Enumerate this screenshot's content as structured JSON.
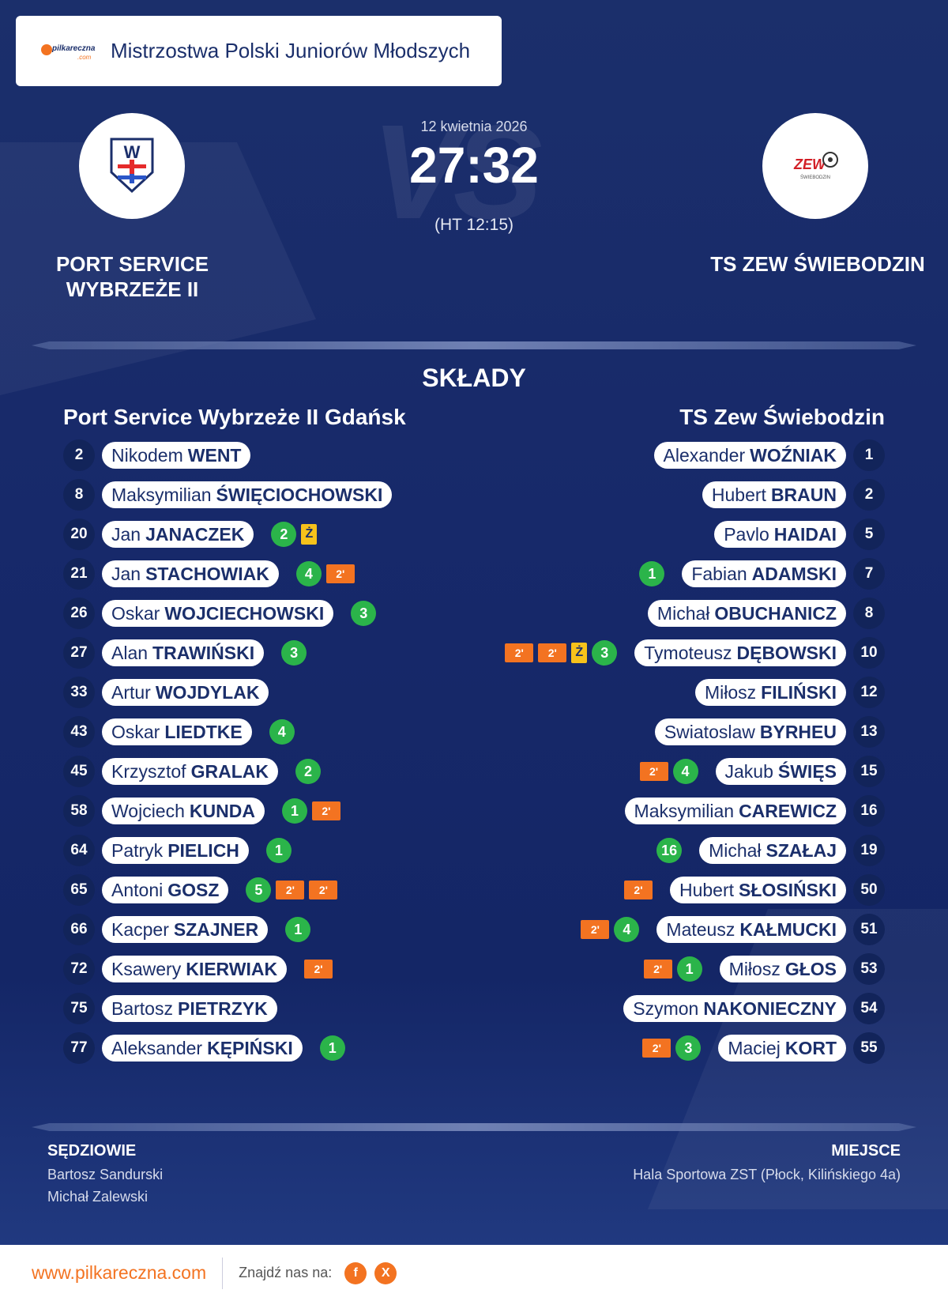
{
  "header": {
    "competition": "Mistrzostwa Polski Juniorów Młodszych",
    "brand": "pilkareczna",
    "brand_suffix": ".com"
  },
  "match": {
    "date": "12 kwietnia 2026",
    "score": "27:32",
    "halftime": "(HT 12:15)",
    "vs": "VS"
  },
  "home": {
    "name_line1": "PORT SERVICE",
    "name_line2": "WYBRZEŻE II",
    "logo_text": "W",
    "squad_title": "Port Service Wybrzeże II Gdańsk",
    "players": [
      {
        "num": "2",
        "first": "Nikodem",
        "last": "WENT",
        "goals": "",
        "events": []
      },
      {
        "num": "8",
        "first": "Maksymilian",
        "last": "ŚWIĘCIOCHOWSKI",
        "goals": "",
        "events": []
      },
      {
        "num": "20",
        "first": "Jan",
        "last": "JANACZEK",
        "goals": "2",
        "events": [
          "Ż"
        ]
      },
      {
        "num": "21",
        "first": "Jan",
        "last": "STACHOWIAK",
        "goals": "4",
        "events": [
          "2'"
        ]
      },
      {
        "num": "26",
        "first": "Oskar",
        "last": "WOJCIECHOWSKI",
        "goals": "3",
        "events": []
      },
      {
        "num": "27",
        "first": "Alan",
        "last": "TRAWIŃSKI",
        "goals": "3",
        "events": []
      },
      {
        "num": "33",
        "first": "Artur",
        "last": "WOJDYLAK",
        "goals": "",
        "events": []
      },
      {
        "num": "43",
        "first": "Oskar",
        "last": "LIEDTKE",
        "goals": "4",
        "events": []
      },
      {
        "num": "45",
        "first": "Krzysztof",
        "last": "GRALAK",
        "goals": "2",
        "events": []
      },
      {
        "num": "58",
        "first": "Wojciech",
        "last": "KUNDA",
        "goals": "1",
        "events": [
          "2'"
        ]
      },
      {
        "num": "64",
        "first": "Patryk",
        "last": "PIELICH",
        "goals": "1",
        "events": []
      },
      {
        "num": "65",
        "first": "Antoni",
        "last": "GOSZ",
        "goals": "5",
        "events": [
          "2'",
          "2'"
        ]
      },
      {
        "num": "66",
        "first": "Kacper",
        "last": "SZAJNER",
        "goals": "1",
        "events": []
      },
      {
        "num": "72",
        "first": "Ksawery",
        "last": "KIERWIAK",
        "goals": "",
        "events": [
          "2'"
        ]
      },
      {
        "num": "75",
        "first": "Bartosz",
        "last": "PIETRZYK",
        "goals": "",
        "events": []
      },
      {
        "num": "77",
        "first": "Aleksander",
        "last": "KĘPIŃSKI",
        "goals": "1",
        "events": []
      }
    ]
  },
  "away": {
    "name": "TS ZEW ŚWIEBODZIN",
    "logo_text": "ZEW",
    "logo_subtext": "ŚWIEBODZIN",
    "squad_title": "TS Zew Świebodzin",
    "players": [
      {
        "num": "1",
        "first": "Alexander",
        "last": "WOŹNIAK",
        "goals": "",
        "events": []
      },
      {
        "num": "2",
        "first": "Hubert",
        "last": "BRAUN",
        "goals": "",
        "events": []
      },
      {
        "num": "5",
        "first": "Pavlo",
        "last": "HAIDAI",
        "goals": "",
        "events": []
      },
      {
        "num": "7",
        "first": "Fabian",
        "last": "ADAMSKI",
        "goals": "1",
        "events": []
      },
      {
        "num": "8",
        "first": "Michał",
        "last": "OBUCHANICZ",
        "goals": "",
        "events": []
      },
      {
        "num": "10",
        "first": "Tymoteusz",
        "last": "DĘBOWSKI",
        "goals": "3",
        "events": [
          "Ż",
          "2'",
          "2'"
        ]
      },
      {
        "num": "12",
        "first": "Miłosz",
        "last": "FILIŃSKI",
        "goals": "",
        "events": []
      },
      {
        "num": "13",
        "first": "Swiatoslaw",
        "last": "BYRHEU",
        "goals": "",
        "events": []
      },
      {
        "num": "15",
        "first": "Jakub",
        "last": "ŚWIĘS",
        "goals": "4",
        "events": [
          "2'"
        ]
      },
      {
        "num": "16",
        "first": "Maksymilian",
        "last": "CAREWICZ",
        "goals": "",
        "events": []
      },
      {
        "num": "19",
        "first": "Michał",
        "last": "SZAŁAJ",
        "goals": "16",
        "events": []
      },
      {
        "num": "50",
        "first": "Hubert",
        "last": "SŁOSIŃSKI",
        "goals": "",
        "events": [
          "2'"
        ]
      },
      {
        "num": "51",
        "first": "Mateusz",
        "last": "KAŁMUCKI",
        "goals": "4",
        "events": [
          "2'"
        ]
      },
      {
        "num": "53",
        "first": "Miłosz",
        "last": "GŁOS",
        "goals": "1",
        "events": [
          "2'"
        ]
      },
      {
        "num": "54",
        "first": "Szymon",
        "last": "NAKONIECZNY",
        "goals": "",
        "events": []
      },
      {
        "num": "55",
        "first": "Maciej",
        "last": "KORT",
        "goals": "3",
        "events": [
          "2'"
        ]
      }
    ]
  },
  "lineups_title": "SKŁADY",
  "referees": {
    "label": "SĘDZIOWIE",
    "names": [
      "Bartosz Sandurski",
      "Michał Zalewski"
    ]
  },
  "venue": {
    "label": "MIEJSCE",
    "text": "Hala Sportowa ZST (Płock, Kilińskiego 4a)"
  },
  "footer": {
    "url": "www.pilkareczna.com",
    "find_us": "Znajdź nas na:",
    "social": [
      "f",
      "X"
    ]
  },
  "colors": {
    "navy": "#1b2f6b",
    "orange": "#f37321",
    "green": "#2bb44a",
    "yellow": "#f7c21b"
  }
}
